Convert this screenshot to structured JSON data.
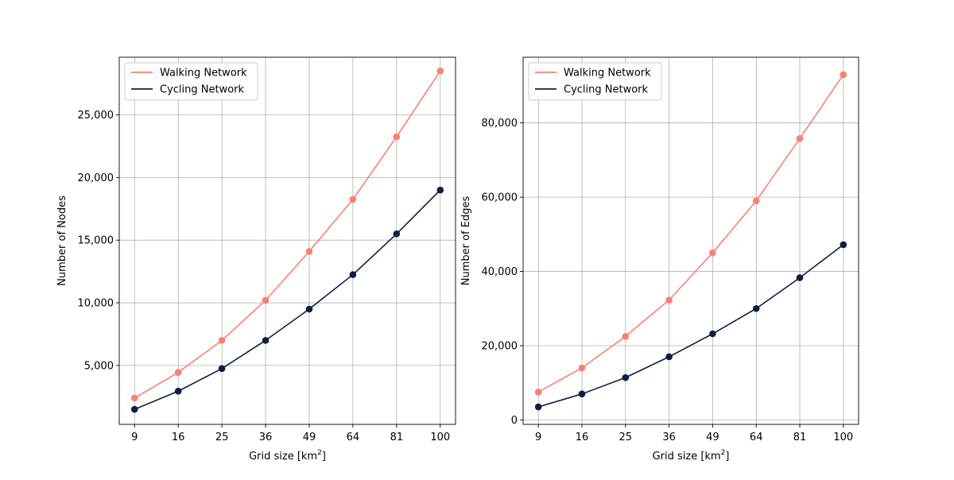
{
  "chart_data": [
    {
      "type": "line",
      "x": [
        9,
        16,
        25,
        36,
        49,
        64,
        81,
        100
      ],
      "categories": [
        "9",
        "16",
        "25",
        "36",
        "49",
        "64",
        "81",
        "100"
      ],
      "series": [
        {
          "name": "Walking Network",
          "color": "#fa8072",
          "values": [
            2400,
            4450,
            7000,
            10200,
            14100,
            18250,
            23250,
            28500
          ]
        },
        {
          "name": "Cycling Network",
          "color": "#0b1f45",
          "values": [
            1500,
            2950,
            4750,
            7000,
            9500,
            12250,
            15500,
            19000
          ]
        }
      ],
      "title": "",
      "xlabel": "Grid size [km",
      "xlabel_sup": "2",
      "xlabel_end": "]",
      "ylabel": "Number of Nodes",
      "ylim": [
        300,
        29600
      ],
      "yticks": [
        5000,
        10000,
        15000,
        20000,
        25000
      ],
      "ytick_labels": [
        "5,000",
        "10,000",
        "15,000",
        "20,000",
        "25,000"
      ],
      "grid": true,
      "legend": "top-left"
    },
    {
      "type": "line",
      "x": [
        9,
        16,
        25,
        36,
        49,
        64,
        81,
        100
      ],
      "categories": [
        "9",
        "16",
        "25",
        "36",
        "49",
        "64",
        "81",
        "100"
      ],
      "series": [
        {
          "name": "Walking Network",
          "color": "#fa8072",
          "values": [
            7500,
            14000,
            22500,
            32300,
            45000,
            59000,
            75800,
            93000
          ]
        },
        {
          "name": "Cycling Network",
          "color": "#0b1f45",
          "values": [
            3500,
            7000,
            11400,
            17000,
            23200,
            30000,
            38300,
            47200
          ]
        }
      ],
      "title": "",
      "xlabel": "Grid size [km",
      "xlabel_sup": "2",
      "xlabel_end": "]",
      "ylabel": "Number of Edges",
      "ylim": [
        -1200,
        97700
      ],
      "yticks": [
        0,
        20000,
        40000,
        60000,
        80000
      ],
      "ytick_labels": [
        "0",
        "20,000",
        "40,000",
        "60,000",
        "80,000"
      ],
      "grid": true,
      "legend": "top-left"
    }
  ]
}
